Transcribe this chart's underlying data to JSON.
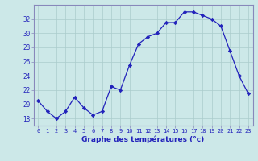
{
  "hours": [
    0,
    1,
    2,
    3,
    4,
    5,
    6,
    7,
    8,
    9,
    10,
    11,
    12,
    13,
    14,
    15,
    16,
    17,
    18,
    19,
    20,
    21,
    22,
    23
  ],
  "temps": [
    20.5,
    19.0,
    18.0,
    19.0,
    21.0,
    19.5,
    18.5,
    19.0,
    22.5,
    22.0,
    25.5,
    28.5,
    29.5,
    30.0,
    31.5,
    31.5,
    33.0,
    33.0,
    32.5,
    32.0,
    31.0,
    27.5,
    24.0,
    21.5
  ],
  "line_color": "#2222bb",
  "marker": "D",
  "marker_size": 2.2,
  "bg_color": "#cce8e8",
  "grid_color": "#aacccc",
  "xlabel": "Graphe des températures (°c)",
  "ylim": [
    17,
    34
  ],
  "yticks": [
    18,
    20,
    22,
    24,
    26,
    28,
    30,
    32
  ],
  "xticks": [
    0,
    1,
    2,
    3,
    4,
    5,
    6,
    7,
    8,
    9,
    10,
    11,
    12,
    13,
    14,
    15,
    16,
    17,
    18,
    19,
    20,
    21,
    22,
    23
  ],
  "xtick_labels": [
    "0",
    "1",
    "2",
    "3",
    "4",
    "5",
    "6",
    "7",
    "8",
    "9",
    "10",
    "11",
    "12",
    "13",
    "14",
    "15",
    "16",
    "17",
    "18",
    "19",
    "20",
    "21",
    "22",
    "23"
  ],
  "border_color": "#8888bb",
  "axis_bg": "#cce8e8"
}
